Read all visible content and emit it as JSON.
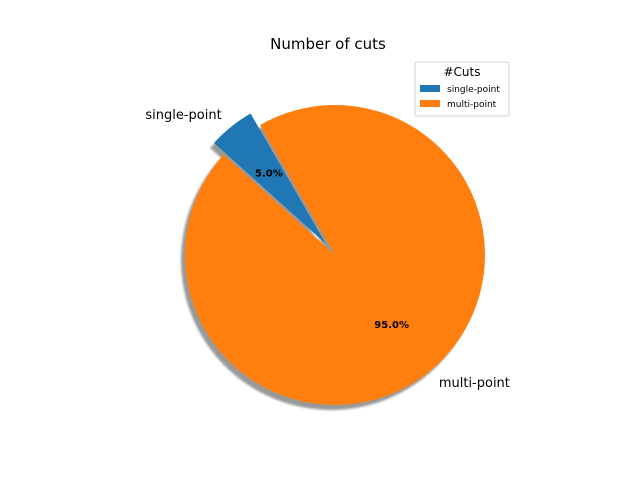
{
  "chart_data": {
    "type": "pie",
    "title": "Number of cuts",
    "categories": [
      "single-point",
      "multi-point"
    ],
    "values": [
      5.0,
      95.0
    ],
    "percent_labels": [
      "5.0%",
      "95.0%"
    ],
    "colors": [
      "#1f77b4",
      "#ff7f0e"
    ],
    "exploded": [
      true,
      false
    ],
    "shadow": true,
    "legend": {
      "title": "#Cuts",
      "entries": [
        "single-point",
        "multi-point"
      ],
      "placement": "top-right"
    }
  }
}
